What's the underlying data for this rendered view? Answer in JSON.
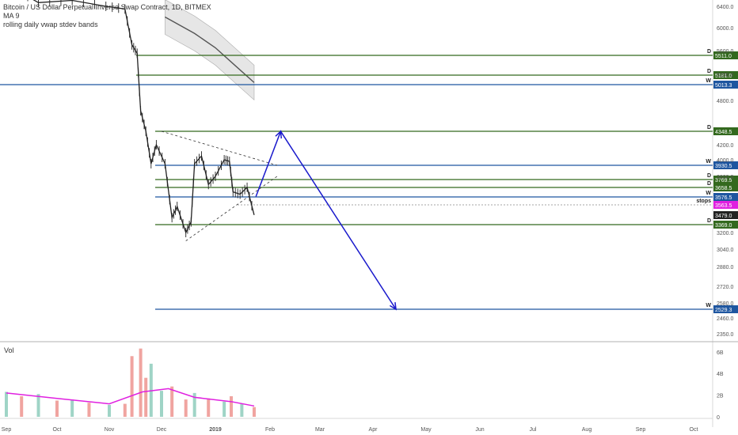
{
  "header": {
    "symbol_line": "Bitcoin / US Dollar Perpetual Inverse Swap Contract, 1D, BITMEX",
    "ma_label": "MA 9",
    "vwap_label": "rolling daily vwap stdev bands"
  },
  "volume_label": "Vol",
  "colors": {
    "daily_level": "#33691e",
    "weekly_level": "#1e56a0",
    "arrow": "#1a1acc",
    "stops_tag": "#e020e0",
    "volume_ma": "#e020e0",
    "bull_vol": "#9fd4c6",
    "bear_vol": "#f0a4a0"
  },
  "chart_data": {
    "type": "line",
    "title": "",
    "price_axis_ticks": [
      "6400.0",
      "6000.0",
      "5600.0",
      "5200.0",
      "4800.0",
      "4200.0",
      "4000.0",
      "3800.0",
      "3200.0",
      "3040.0",
      "2880.0",
      "2720.0",
      "2580.0",
      "2460.0",
      "2350.0"
    ],
    "x_axis_ticks": [
      "Sep",
      "Oct",
      "Nov",
      "Dec",
      "2019",
      "Feb",
      "Mar",
      "Apr",
      "May",
      "Jun",
      "Jul",
      "Aug",
      "Sep",
      "Oct"
    ],
    "volume_axis_ticks": [
      "6B",
      "4B",
      "2B",
      "0"
    ],
    "levels": [
      {
        "timeframe": "D",
        "value": "5511.0",
        "price": 5511.0,
        "kind": "daily"
      },
      {
        "timeframe": "D",
        "value": "5181.0",
        "price": 5181.0,
        "kind": "daily"
      },
      {
        "timeframe": "W",
        "value": "5013.3",
        "price": 5013.3,
        "kind": "weekly"
      },
      {
        "timeframe": "D",
        "value": "4348.5",
        "price": 4348.5,
        "kind": "daily"
      },
      {
        "timeframe": "W",
        "value": "3930.5",
        "price": 3930.5,
        "kind": "weekly"
      },
      {
        "timeframe": "D",
        "value": "3769.5",
        "price": 3769.5,
        "kind": "daily"
      },
      {
        "timeframe": "D",
        "value": "3658.5",
        "price": 3658.5,
        "kind": "daily"
      },
      {
        "timeframe": "W",
        "value": "3576.5",
        "price": 3576.5,
        "kind": "weekly"
      },
      {
        "timeframe": "stops",
        "value": "3563.5",
        "price": 3563.5,
        "kind": "stops"
      },
      {
        "timeframe": "",
        "value": "3479.0",
        "price": 3479.0,
        "kind": "current"
      },
      {
        "timeframe": "D",
        "value": "3369.0",
        "price": 3369.0,
        "kind": "daily"
      },
      {
        "timeframe": "W",
        "value": "2529.3",
        "price": 2529.3,
        "kind": "weekly"
      }
    ],
    "projection": [
      {
        "date": "2019-01-24",
        "price": 3580
      },
      {
        "date": "2019-02-07",
        "price": 4348
      },
      {
        "date": "2019-04-14",
        "price": 2529
      }
    ],
    "price_series": [
      {
        "date": "2018-09-01",
        "price": 7000
      },
      {
        "date": "2018-09-20",
        "price": 6500
      },
      {
        "date": "2018-10-10",
        "price": 6560
      },
      {
        "date": "2018-10-30",
        "price": 6400
      },
      {
        "date": "2018-11-10",
        "price": 6350
      },
      {
        "date": "2018-11-14",
        "price": 5700
      },
      {
        "date": "2018-11-17",
        "price": 5550
      },
      {
        "date": "2018-11-19",
        "price": 4650
      },
      {
        "date": "2018-11-22",
        "price": 4350
      },
      {
        "date": "2018-11-25",
        "price": 3950
      },
      {
        "date": "2018-11-28",
        "price": 4200
      },
      {
        "date": "2018-12-03",
        "price": 3950
      },
      {
        "date": "2018-12-07",
        "price": 3450
      },
      {
        "date": "2018-12-10",
        "price": 3550
      },
      {
        "date": "2018-12-15",
        "price": 3200
      },
      {
        "date": "2018-12-18",
        "price": 3400
      },
      {
        "date": "2018-12-20",
        "price": 3950
      },
      {
        "date": "2018-12-24",
        "price": 4050
      },
      {
        "date": "2018-12-28",
        "price": 3700
      },
      {
        "date": "2019-01-01",
        "price": 3800
      },
      {
        "date": "2019-01-06",
        "price": 4000
      },
      {
        "date": "2019-01-09",
        "price": 3980
      },
      {
        "date": "2019-01-11",
        "price": 3620
      },
      {
        "date": "2019-01-15",
        "price": 3600
      },
      {
        "date": "2019-01-19",
        "price": 3660
      },
      {
        "date": "2019-01-23",
        "price": 3480
      }
    ],
    "ma_series": [
      {
        "date": "2018-12-03",
        "price": 6200
      },
      {
        "date": "2018-12-20",
        "price": 5900
      },
      {
        "date": "2019-01-01",
        "price": 5650
      },
      {
        "date": "2019-01-12",
        "price": 5350
      },
      {
        "date": "2019-01-23",
        "price": 5050
      }
    ],
    "volume": [
      {
        "date": "2018-09-01",
        "value": 2.3,
        "dir": "up"
      },
      {
        "date": "2018-09-10",
        "value": 1.9,
        "dir": "down"
      },
      {
        "date": "2018-09-20",
        "value": 2.1,
        "dir": "up"
      },
      {
        "date": "2018-10-01",
        "value": 1.5,
        "dir": "down"
      },
      {
        "date": "2018-10-10",
        "value": 1.6,
        "dir": "up"
      },
      {
        "date": "2018-10-20",
        "value": 1.3,
        "dir": "down"
      },
      {
        "date": "2018-11-01",
        "value": 1.1,
        "dir": "up"
      },
      {
        "date": "2018-11-10",
        "value": 1.2,
        "dir": "down"
      },
      {
        "date": "2018-11-14",
        "value": 5.6,
        "dir": "down"
      },
      {
        "date": "2018-11-19",
        "value": 6.3,
        "dir": "down"
      },
      {
        "date": "2018-11-22",
        "value": 3.6,
        "dir": "down"
      },
      {
        "date": "2018-11-25",
        "value": 4.9,
        "dir": "up"
      },
      {
        "date": "2018-12-01",
        "value": 2.4,
        "dir": "up"
      },
      {
        "date": "2018-12-07",
        "value": 2.8,
        "dir": "down"
      },
      {
        "date": "2018-12-15",
        "value": 1.6,
        "dir": "down"
      },
      {
        "date": "2018-12-20",
        "value": 2.2,
        "dir": "up"
      },
      {
        "date": "2018-12-28",
        "value": 1.7,
        "dir": "down"
      },
      {
        "date": "2019-01-06",
        "value": 1.4,
        "dir": "up"
      },
      {
        "date": "2019-01-10",
        "value": 1.9,
        "dir": "down"
      },
      {
        "date": "2019-01-16",
        "value": 1.2,
        "dir": "up"
      },
      {
        "date": "2019-01-23",
        "value": 0.9,
        "dir": "down"
      }
    ],
    "volume_ma": [
      {
        "date": "2018-09-01",
        "value": 2.2
      },
      {
        "date": "2018-10-01",
        "value": 1.7
      },
      {
        "date": "2018-11-01",
        "value": 1.2
      },
      {
        "date": "2018-11-20",
        "value": 2.3
      },
      {
        "date": "2018-12-05",
        "value": 2.6
      },
      {
        "date": "2018-12-20",
        "value": 1.8
      },
      {
        "date": "2019-01-10",
        "value": 1.4
      },
      {
        "date": "2019-01-23",
        "value": 1.0
      }
    ]
  }
}
